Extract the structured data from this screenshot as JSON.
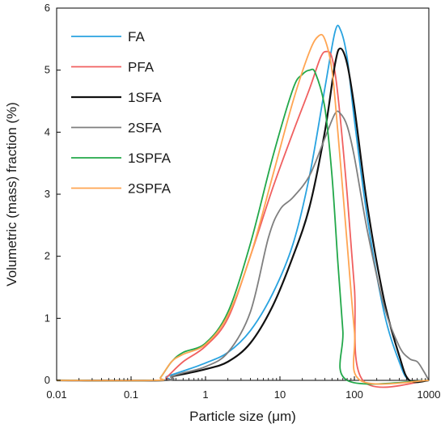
{
  "chart_data": {
    "type": "line",
    "title": "",
    "xlabel": "Particle size (μm)",
    "ylabel": "Volumetric (mass) fraction (%)",
    "x_scale": "log",
    "xlim": [
      0.01,
      1000
    ],
    "ylim": [
      0,
      6
    ],
    "x_ticks": [
      0.01,
      0.1,
      1,
      10,
      100,
      1000
    ],
    "x_tick_labels": [
      "0.01",
      "0.1",
      "1",
      "10",
      "100",
      "1000"
    ],
    "y_ticks": [
      0,
      1,
      2,
      3,
      4,
      5,
      6
    ],
    "y_tick_labels": [
      "0",
      "1",
      "2",
      "3",
      "4",
      "5",
      "6"
    ],
    "grid": false,
    "legend_position": "top-left",
    "series": [
      {
        "name": "FA",
        "color": "#29a3e0",
        "x": [
          0.01,
          0.25,
          0.3,
          0.5,
          1,
          2,
          4,
          8,
          15,
          25,
          40,
          55,
          65,
          80,
          100,
          150,
          250,
          400,
          550,
          1000
        ],
        "y": [
          0,
          0,
          0.06,
          0.15,
          0.28,
          0.45,
          0.8,
          1.4,
          2.2,
          3.3,
          4.7,
          5.62,
          5.65,
          5.2,
          4.2,
          2.6,
          1.1,
          0.3,
          0,
          0
        ]
      },
      {
        "name": "PFA",
        "color": "#f06060",
        "x": [
          0.01,
          0.25,
          0.3,
          0.5,
          1,
          2,
          4,
          8,
          15,
          25,
          35,
          42,
          50,
          60,
          80,
          100,
          130,
          1000
        ],
        "y": [
          0,
          0,
          0.05,
          0.3,
          0.55,
          1.0,
          2.0,
          3.1,
          4.0,
          4.7,
          5.2,
          5.3,
          5.2,
          4.6,
          3.0,
          1.5,
          0,
          0
        ]
      },
      {
        "name": "1SFA",
        "color": "#111111",
        "x": [
          0.01,
          0.27,
          0.35,
          0.5,
          1,
          2,
          4,
          8,
          15,
          25,
          40,
          55,
          65,
          80,
          100,
          150,
          250,
          400,
          550,
          1000
        ],
        "y": [
          0,
          0,
          0.06,
          0.1,
          0.18,
          0.3,
          0.6,
          1.2,
          2.0,
          2.8,
          4.0,
          5.1,
          5.35,
          5.1,
          4.4,
          2.8,
          1.3,
          0.4,
          0,
          0
        ]
      },
      {
        "name": "2SFA",
        "color": "#7f7f7f",
        "x": [
          0.01,
          0.27,
          0.35,
          0.5,
          1,
          2,
          4,
          7,
          10,
          15,
          25,
          40,
          55,
          65,
          80,
          100,
          150,
          250,
          400,
          550,
          700,
          850,
          1000
        ],
        "y": [
          0,
          0,
          0.06,
          0.12,
          0.22,
          0.45,
          1.1,
          2.3,
          2.75,
          2.95,
          3.3,
          3.9,
          4.3,
          4.3,
          4.1,
          3.6,
          2.4,
          1.2,
          0.55,
          0.35,
          0.3,
          0.15,
          0
        ]
      },
      {
        "name": "1SPFA",
        "color": "#22a84a",
        "x": [
          0.01,
          0.21,
          0.25,
          0.35,
          0.5,
          1,
          2,
          4,
          8,
          15,
          20,
          25,
          30,
          40,
          50,
          60,
          70,
          80,
          1000
        ],
        "y": [
          0,
          0,
          0.05,
          0.3,
          0.45,
          0.6,
          1.1,
          2.2,
          3.6,
          4.7,
          4.93,
          5.0,
          4.95,
          4.4,
          3.3,
          1.9,
          0.8,
          0,
          0
        ]
      },
      {
        "name": "2SPFA",
        "color": "#ffa552",
        "x": [
          0.01,
          0.21,
          0.25,
          0.35,
          0.5,
          1,
          2,
          4,
          8,
          15,
          25,
          33,
          40,
          50,
          60,
          80,
          100,
          120,
          1000
        ],
        "y": [
          0,
          0,
          0.05,
          0.3,
          0.42,
          0.58,
          1.05,
          2.0,
          3.3,
          4.5,
          5.3,
          5.55,
          5.5,
          5.0,
          4.0,
          2.2,
          0.8,
          0,
          0
        ]
      }
    ]
  }
}
